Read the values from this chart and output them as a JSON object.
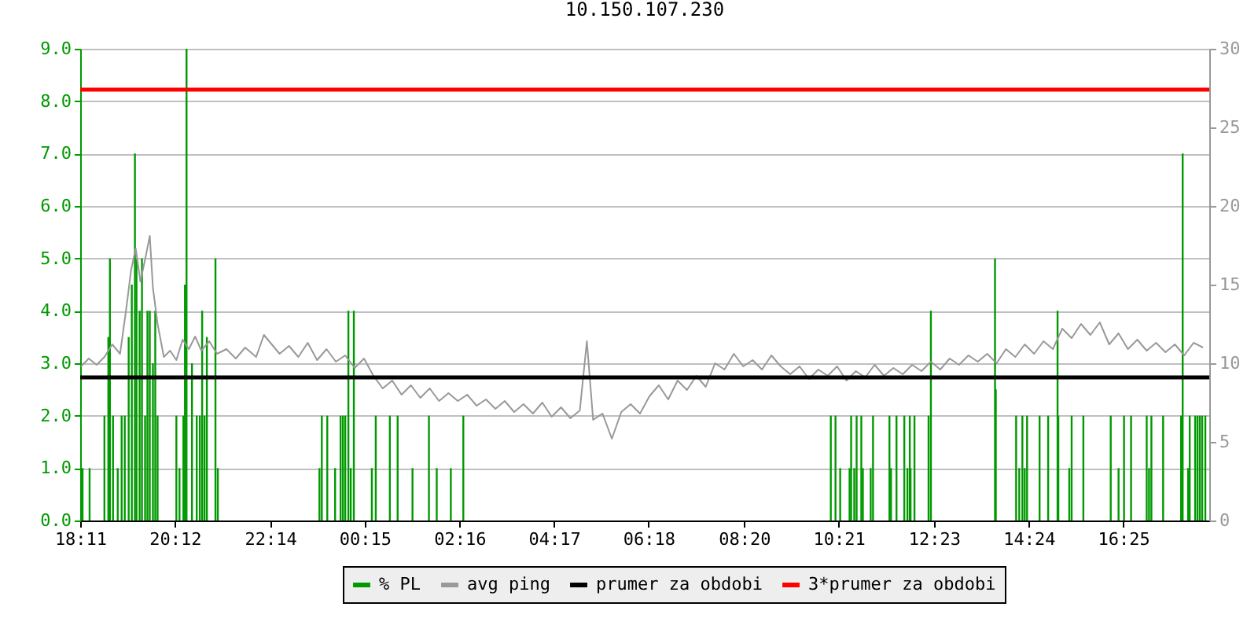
{
  "chart_data": {
    "type": "line",
    "title": "10.150.107.230",
    "xlim": [
      "--01-01T18:11",
      "--01-02T18:15"
    ],
    "xticks": [
      {
        "value": "--01-01T18:11",
        "label": "18:11"
      },
      {
        "value": "--01-01T20:12",
        "label": "20:12"
      },
      {
        "value": "--01-01T22:14",
        "label": "22:14"
      },
      {
        "value": "--01-02T00:15",
        "label": "00:15"
      },
      {
        "value": "--01-02T02:16",
        "label": "02:16"
      },
      {
        "value": "--01-02T04:17",
        "label": "04:17"
      },
      {
        "value": "--01-02T06:18",
        "label": "06:18"
      },
      {
        "value": "--01-02T08:20",
        "label": "08:20"
      },
      {
        "value": "--01-02T10:21",
        "label": "10:21"
      },
      {
        "value": "--01-02T12:23",
        "label": "12:23"
      },
      {
        "value": "--01-02T14:24",
        "label": "14:24"
      },
      {
        "value": "--01-02T16:25",
        "label": "16:25"
      }
    ],
    "ylim": [
      0,
      9
    ],
    "yticks": [
      {
        "value": 0,
        "label": "0.0"
      },
      {
        "value": 1,
        "label": "1.0"
      },
      {
        "value": 2,
        "label": "2.0"
      },
      {
        "value": 3,
        "label": "3.0"
      },
      {
        "value": 4,
        "label": "4.0"
      },
      {
        "value": 5,
        "label": "5.0"
      },
      {
        "value": 6,
        "label": "6.0"
      },
      {
        "value": 7,
        "label": "7.0"
      },
      {
        "value": 8,
        "label": "8.0"
      },
      {
        "value": 9,
        "label": "9.0"
      }
    ],
    "y2lim": [
      0,
      30
    ],
    "y2ticks": [
      0,
      5,
      10,
      15,
      20,
      25,
      30
    ],
    "grid": "y",
    "legend": "bottom",
    "marker": "none",
    "line_style": "solid",
    "series": [
      {
        "name": "% PL",
        "type": "bar",
        "color": "#009900",
        "x": [
          "--01-01T18:14",
          "--01-01T18:23",
          "--01-01T18:42",
          "--01-01T18:47",
          "--01-01T18:49",
          "--01-01T18:53",
          "--01-01T18:59",
          "--01-01T19:04",
          "--01-01T19:08",
          "--01-01T19:13",
          "--01-01T19:17",
          "--01-01T19:21",
          "--01-01T19:23",
          "--01-01T19:27",
          "--01-01T19:30",
          "--01-01T19:34",
          "--01-01T19:37",
          "--01-01T19:40",
          "--01-01T19:44",
          "--01-01T19:47",
          "--01-01T19:50",
          "--01-01T20:14",
          "--01-01T20:18",
          "--01-01T20:23",
          "--01-01T20:25",
          "--01-01T20:27",
          "--01-01T20:34",
          "--01-01T20:40",
          "--01-01T20:44",
          "--01-01T20:47",
          "--01-01T20:50",
          "--01-01T20:53",
          "--01-01T21:04",
          "--01-01T21:07",
          "--01-01T23:17",
          "--01-01T23:20",
          "--01-01T23:27",
          "--01-01T23:37",
          "--01-01T23:44",
          "--01-01T23:47",
          "--01-01T23:50",
          "--01-01T23:54",
          "--01-01T23:57",
          "--01-02T00:01",
          "--01-02T00:24",
          "--01-02T00:29",
          "--01-02T00:47",
          "--01-02T00:57",
          "--01-02T01:16",
          "--01-02T01:37",
          "--01-02T01:47",
          "--01-02T02:05",
          "--01-02T02:21",
          "--01-02T10:11",
          "--01-02T10:17",
          "--01-02T10:23",
          "--01-02T10:35",
          "--01-02T10:37",
          "--01-02T10:41",
          "--01-02T10:44",
          "--01-02T10:50",
          "--01-02T10:52",
          "--01-02T11:02",
          "--01-02T11:05",
          "--01-02T11:26",
          "--01-02T11:28",
          "--01-02T11:35",
          "--01-02T11:45",
          "--01-02T11:49",
          "--01-02T11:52",
          "--01-02T11:53",
          "--01-02T11:58",
          "--01-02T12:16",
          "--01-02T12:19",
          "--01-02T13:41",
          "--01-02T13:42",
          "--01-02T14:08",
          "--01-02T14:12",
          "--01-02T14:16",
          "--01-02T14:19",
          "--01-02T14:22",
          "--01-02T14:38",
          "--01-02T14:49",
          "--01-02T15:01",
          "--01-02T15:02",
          "--01-02T15:16",
          "--01-02T15:19",
          "--01-02T15:34",
          "--01-02T16:09",
          "--01-02T16:19",
          "--01-02T16:26",
          "--01-02T16:35",
          "--01-02T16:55",
          "--01-02T16:58",
          "--01-02T17:01",
          "--01-02T17:16",
          "--01-02T17:39",
          "--01-02T17:41",
          "--01-02T17:48",
          "--01-02T17:50",
          "--01-02T17:57",
          "--01-02T18:00",
          "--01-02T18:03",
          "--01-02T18:06",
          "--01-02T18:10"
        ],
        "values": [
          1,
          1,
          2,
          3.5,
          5,
          2,
          1,
          2,
          2,
          3.5,
          4.5,
          7,
          5,
          4,
          5,
          2,
          4,
          4,
          3,
          4,
          2,
          2,
          1,
          2,
          4.5,
          9,
          3,
          2,
          2,
          4,
          2,
          3.5,
          5,
          1,
          1,
          2,
          2,
          1,
          2,
          2,
          2,
          4,
          1,
          4,
          1,
          2,
          2,
          2,
          1,
          2,
          1,
          1,
          2,
          2,
          2,
          1,
          1,
          2,
          1,
          2,
          2,
          1,
          1,
          2,
          2,
          1,
          2,
          2,
          1,
          2,
          1,
          2,
          2,
          4,
          5,
          2.5,
          2,
          1,
          2,
          1,
          2,
          2,
          2,
          4,
          2,
          1,
          2,
          2,
          2,
          1,
          2,
          2,
          2,
          1,
          2,
          2,
          2,
          7,
          1,
          2,
          2,
          2,
          2,
          2,
          2
        ]
      },
      {
        "name": "avg ping",
        "axis": "y2",
        "color": "#999999",
        "x": [
          "--01-01T18:12",
          "--01-01T18:22",
          "--01-01T18:32",
          "--01-01T18:42",
          "--01-01T18:52",
          "--01-01T19:02",
          "--01-01T19:10",
          "--01-01T19:16",
          "--01-01T19:22",
          "--01-01T19:28",
          "--01-01T19:34",
          "--01-01T19:40",
          "--01-01T19:44",
          "--01-01T19:50",
          "--01-01T19:58",
          "--01-01T20:06",
          "--01-01T20:14",
          "--01-01T20:22",
          "--01-01T20:30",
          "--01-01T20:38",
          "--01-01T20:46",
          "--01-01T20:56",
          "--01-01T21:06",
          "--01-01T21:18",
          "--01-01T21:30",
          "--01-01T21:42",
          "--01-01T21:56",
          "--01-01T22:06",
          "--01-01T22:16",
          "--01-01T22:26",
          "--01-01T22:38",
          "--01-01T22:50",
          "--01-01T23:02",
          "--01-01T23:14",
          "--01-01T23:26",
          "--01-01T23:38",
          "--01-01T23:50",
          "--01-02T00:02",
          "--01-02T00:14",
          "--01-02T00:26",
          "--01-02T00:38",
          "--01-02T00:50",
          "--01-02T01:02",
          "--01-02T01:14",
          "--01-02T01:26",
          "--01-02T01:38",
          "--01-02T01:50",
          "--01-02T02:02",
          "--01-02T02:14",
          "--01-02T02:26",
          "--01-02T02:38",
          "--01-02T02:50",
          "--01-02T03:02",
          "--01-02T03:14",
          "--01-02T03:26",
          "--01-02T03:38",
          "--01-02T03:50",
          "--01-02T04:02",
          "--01-02T04:14",
          "--01-02T04:26",
          "--01-02T04:38",
          "--01-02T04:50",
          "--01-02T04:59",
          "--01-02T05:07",
          "--01-02T05:19",
          "--01-02T05:31",
          "--01-02T05:43",
          "--01-02T05:55",
          "--01-02T06:07",
          "--01-02T06:19",
          "--01-02T06:31",
          "--01-02T06:43",
          "--01-02T06:55",
          "--01-02T07:07",
          "--01-02T07:19",
          "--01-02T07:31",
          "--01-02T07:43",
          "--01-02T07:55",
          "--01-02T08:07",
          "--01-02T08:19",
          "--01-02T08:31",
          "--01-02T08:43",
          "--01-02T08:55",
          "--01-02T09:07",
          "--01-02T09:19",
          "--01-02T09:31",
          "--01-02T09:43",
          "--01-02T09:55",
          "--01-02T10:07",
          "--01-02T10:19",
          "--01-02T10:31",
          "--01-02T10:43",
          "--01-02T10:55",
          "--01-02T11:07",
          "--01-02T11:19",
          "--01-02T11:31",
          "--01-02T11:43",
          "--01-02T11:55",
          "--01-02T12:07",
          "--01-02T12:19",
          "--01-02T12:31",
          "--01-02T12:43",
          "--01-02T12:55",
          "--01-02T13:07",
          "--01-02T13:19",
          "--01-02T13:31",
          "--01-02T13:43",
          "--01-02T13:55",
          "--01-02T14:07",
          "--01-02T14:19",
          "--01-02T14:31",
          "--01-02T14:43",
          "--01-02T14:55",
          "--01-02T15:07",
          "--01-02T15:19",
          "--01-02T15:31",
          "--01-02T15:43",
          "--01-02T15:55",
          "--01-02T16:07",
          "--01-02T16:19",
          "--01-02T16:31",
          "--01-02T16:43",
          "--01-02T16:55",
          "--01-02T17:07",
          "--01-02T17:19",
          "--01-02T17:31",
          "--01-02T17:43",
          "--01-02T17:55",
          "--01-02T18:07"
        ],
        "values": [
          9.8,
          10.3,
          9.9,
          10.4,
          11.2,
          10.6,
          13.5,
          15.9,
          17.3,
          15.2,
          16.6,
          18.1,
          14.8,
          12.5,
          10.4,
          10.8,
          10.2,
          11.5,
          10.9,
          11.7,
          10.8,
          11.4,
          10.6,
          10.9,
          10.3,
          11.0,
          10.4,
          11.8,
          11.2,
          10.6,
          11.1,
          10.4,
          11.3,
          10.2,
          10.9,
          10.1,
          10.5,
          9.7,
          10.3,
          9.2,
          8.4,
          8.9,
          8.0,
          8.6,
          7.8,
          8.4,
          7.6,
          8.1,
          7.6,
          8.0,
          7.3,
          7.7,
          7.1,
          7.6,
          6.9,
          7.4,
          6.8,
          7.5,
          6.6,
          7.2,
          6.5,
          7.0,
          11.4,
          6.4,
          6.8,
          5.2,
          6.9,
          7.4,
          6.8,
          7.9,
          8.6,
          7.7,
          8.9,
          8.3,
          9.2,
          8.5,
          10.0,
          9.6,
          10.6,
          9.8,
          10.2,
          9.6,
          10.5,
          9.8,
          9.3,
          9.8,
          9.0,
          9.6,
          9.2,
          9.8,
          8.9,
          9.5,
          9.1,
          9.9,
          9.2,
          9.7,
          9.3,
          9.9,
          9.5,
          10.1,
          9.6,
          10.3,
          9.9,
          10.5,
          10.1,
          10.6,
          10.0,
          10.9,
          10.4,
          11.2,
          10.6,
          11.4,
          10.9,
          12.2,
          11.6,
          12.5,
          11.8,
          12.6,
          11.2,
          11.9,
          10.9,
          11.5,
          10.8,
          11.3,
          10.7,
          11.2,
          10.5,
          11.3,
          11.0
        ]
      }
    ],
    "ref_lines": [
      {
        "axis": "y2",
        "value": 9.1,
        "label": "prumer za obdobi",
        "color": "#000000"
      },
      {
        "axis": "y2",
        "value": 27.4,
        "label": "3*prumer za obdobi",
        "color": "#ff0000"
      }
    ]
  }
}
